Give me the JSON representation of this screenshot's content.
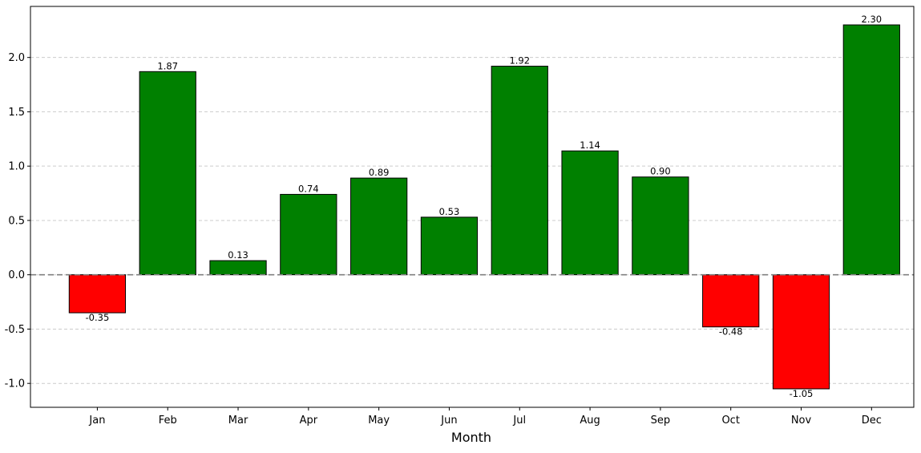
{
  "chart_data": {
    "type": "bar",
    "title": "",
    "xlabel": "Month",
    "ylabel": "",
    "categories": [
      "Jan",
      "Feb",
      "Mar",
      "Apr",
      "May",
      "Jun",
      "Jul",
      "Aug",
      "Sep",
      "Oct",
      "Nov",
      "Dec"
    ],
    "values": [
      -0.35,
      1.87,
      0.13,
      0.74,
      0.89,
      0.53,
      1.92,
      1.14,
      0.9,
      -0.48,
      -1.05,
      2.3
    ],
    "value_labels": [
      "-0.35",
      "1.87",
      "0.13",
      "0.74",
      "0.89",
      "0.53",
      "1.92",
      "1.14",
      "0.90",
      "-0.48",
      "-1.05",
      "2.30"
    ],
    "ylim": [
      -1.22,
      2.47
    ],
    "yticks": [
      -1.0,
      -0.5,
      0.0,
      0.5,
      1.0,
      1.5,
      2.0
    ],
    "ytick_labels": [
      "-1.0",
      "-0.5",
      "0.0",
      "0.5",
      "1.0",
      "1.5",
      "2.0"
    ],
    "grid": "y-dashed",
    "zero_line": "dashed-gray",
    "colors": {
      "positive": "#008000",
      "negative": "#ff0000",
      "edge": "#000000",
      "grid": "#cccccc",
      "zero_line": "#808080"
    }
  }
}
